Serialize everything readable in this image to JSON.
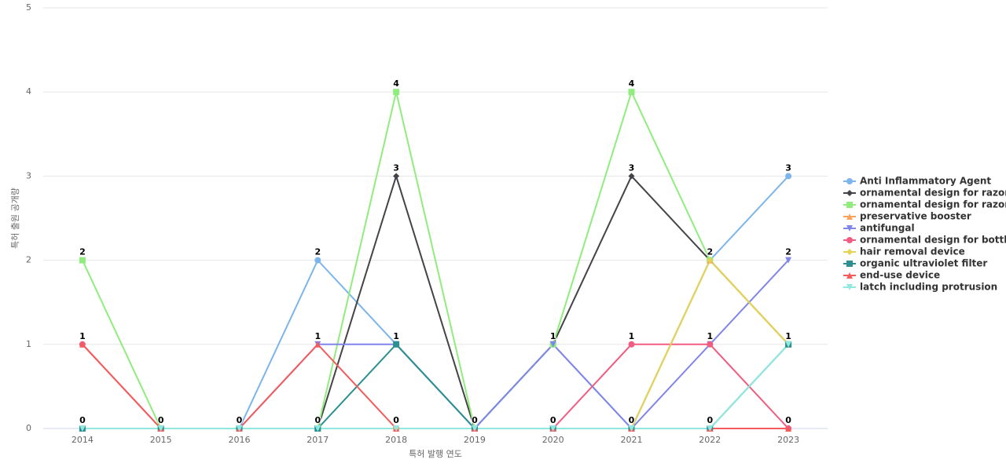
{
  "chart_data": {
    "type": "line",
    "x_label": "특허 발행 연도",
    "y_label": "특허 출원 공개량",
    "categories": [
      "2014",
      "2015",
      "2016",
      "2017",
      "2018",
      "2019",
      "2020",
      "2021",
      "2022",
      "2023"
    ],
    "ylim": [
      0,
      5
    ],
    "yticks": [
      0,
      1,
      2,
      3,
      4,
      5
    ],
    "grid": true,
    "legend": "right",
    "series": [
      {
        "name": "Anti Inflammatory Agent",
        "color": "#7cb5ec",
        "values": [
          0,
          0,
          0,
          2,
          1,
          0,
          1,
          0,
          2,
          3
        ]
      },
      {
        "name": "ornamental design for razor...",
        "color": "#434348",
        "values": [
          0,
          0,
          0,
          0,
          3,
          0,
          1,
          3,
          2,
          1
        ]
      },
      {
        "name": "ornamental design for razor",
        "color": "#90ed7d",
        "values": [
          2,
          0,
          0,
          0,
          4,
          0,
          1,
          4,
          2,
          1
        ]
      },
      {
        "name": "preservative booster",
        "color": "#f7a35c",
        "values": [
          0,
          0,
          0,
          0,
          0,
          0,
          0,
          0,
          2,
          1
        ]
      },
      {
        "name": "antifungal",
        "color": "#8085e9",
        "values": [
          0,
          0,
          0,
          1,
          1,
          0,
          1,
          0,
          1,
          2
        ]
      },
      {
        "name": "ornamental design for bottle",
        "color": "#f15c80",
        "values": [
          1,
          0,
          0,
          0,
          0,
          0,
          0,
          1,
          1,
          0
        ]
      },
      {
        "name": "hair removal device",
        "color": "#e4d354",
        "values": [
          0,
          0,
          0,
          0,
          0,
          0,
          0,
          0,
          2,
          1
        ]
      },
      {
        "name": "organic ultraviolet filter",
        "color": "#2b908f",
        "values": [
          0,
          0,
          0,
          0,
          1,
          0,
          0,
          0,
          0,
          1
        ]
      },
      {
        "name": "end-use device",
        "color": "#f45b5b",
        "values": [
          1,
          0,
          0,
          1,
          0,
          0,
          0,
          0,
          0,
          0
        ]
      },
      {
        "name": "latch including protrusion",
        "color": "#91e8e1",
        "values": [
          0,
          0,
          0,
          0,
          0,
          0,
          0,
          0,
          0,
          1
        ]
      }
    ]
  }
}
